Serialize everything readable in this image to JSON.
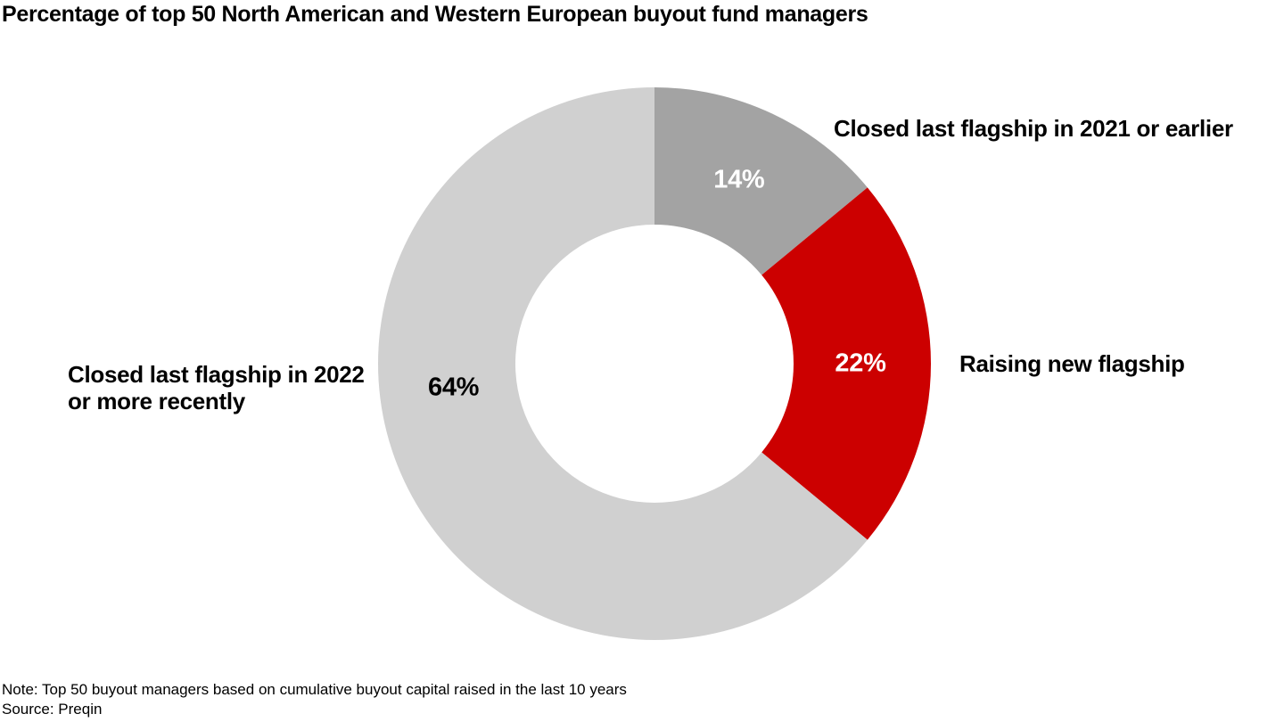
{
  "chart_data": {
    "type": "donut",
    "title": "Percentage of top 50 North American and Western European buyout fund managers",
    "note": "Note: Top 50 buyout managers based on cumulative buyout capital raised in the last 10 years",
    "source": "Source: Preqin",
    "total": 100,
    "units": "%",
    "start_angle_deg": 0,
    "direction": "clockwise",
    "inner_radius_ratio": 0.503,
    "legend_position": "callout-labels",
    "background_color": "#ffffff",
    "segments": [
      {
        "label": "Closed last flagship in 2021 or earlier",
        "value": 14,
        "color": "#a3a3a3",
        "value_label": "14%",
        "value_label_color": "#ffffff",
        "value_label_angle_deg": 24.7,
        "value_label_radius": 227
      },
      {
        "label": "Raising new flagship",
        "value": 22,
        "color": "#cc0000",
        "value_label": "22%",
        "value_label_color": "#ffffff",
        "value_label_angle_deg": 90,
        "value_label_radius": 231
      },
      {
        "label": "Closed last flagship in 2022\nor more recently",
        "value": 64,
        "color": "#d0d0d0",
        "value_label": "64%",
        "value_label_color": "#000000",
        "value_label_angle_deg": 263.2,
        "value_label_radius": 227
      }
    ]
  }
}
